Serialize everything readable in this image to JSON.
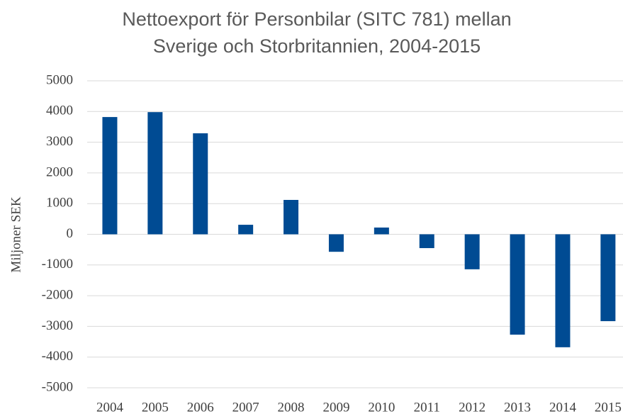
{
  "chart_data": {
    "type": "bar",
    "title": [
      "Nettoexport för Personbilar (SITC 781) mellan",
      "Sverige och Storbritannien, 2004-2015"
    ],
    "y_label": "Miljoner SEK",
    "categories": [
      "2004",
      "2005",
      "2006",
      "2007",
      "2008",
      "2009",
      "2010",
      "2011",
      "2012",
      "2013",
      "2014",
      "2015"
    ],
    "values": [
      3820,
      3980,
      3290,
      310,
      1120,
      -570,
      220,
      -450,
      -1140,
      -3270,
      -3680,
      -2830
    ],
    "color": "#004b93",
    "ylim": [
      -5000,
      5000
    ],
    "yticks": [
      -5000,
      -4000,
      -3000,
      -2000,
      -1000,
      0,
      1000,
      2000,
      3000,
      4000,
      5000
    ],
    "grid": true
  }
}
